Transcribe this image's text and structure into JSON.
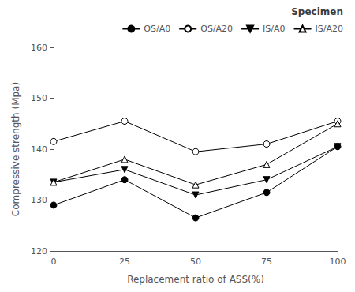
{
  "chart_data": {
    "type": "line",
    "xlabel": "Replacement ratio of ASS(%)",
    "ylabel": "Compressive strength (Mpa)",
    "legend_title": "Specimen",
    "x": [
      0,
      25,
      50,
      75,
      100
    ],
    "series": [
      {
        "name": "OS/A0",
        "values": [
          129,
          134,
          126.5,
          131.5,
          140.5
        ],
        "marker": "circle"
      },
      {
        "name": "OS/A20",
        "values": [
          141.5,
          145.5,
          139.5,
          141,
          145.5
        ],
        "marker": "circle_open"
      },
      {
        "name": "IS/A0",
        "values": [
          133.5,
          136,
          131,
          134,
          140.5
        ],
        "marker": "triangle_down"
      },
      {
        "name": "IS/A20",
        "values": [
          133.5,
          138,
          133,
          137,
          145
        ],
        "marker": "triangle_up_open"
      }
    ],
    "color": "#000000",
    "xlim": [
      0,
      100
    ],
    "xticks": [
      0,
      25,
      50,
      75,
      100
    ],
    "ylim": [
      120,
      160
    ],
    "yticks": [
      120,
      130,
      140,
      150,
      160
    ],
    "grid": false,
    "legend": "upper right"
  }
}
